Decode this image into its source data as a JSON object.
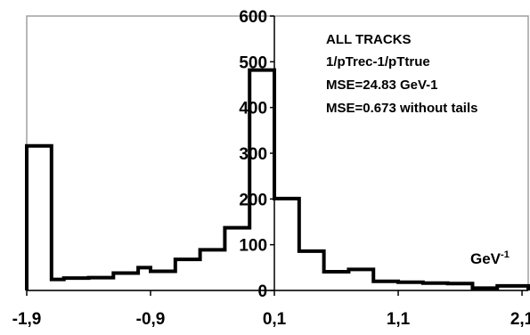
{
  "chart_data": {
    "type": "bar",
    "histogram": true,
    "title": "",
    "xlabel": "",
    "ylabel": "",
    "unit_base": "GeV",
    "unit_exp": "-1",
    "annotations": [
      "ALL TRACKS",
      "1/pTrec-1/pTtrue",
      "MSE=24.83 GeV-1",
      "MSE=0.673 without tails"
    ],
    "xlim": [
      -1.9,
      2.15
    ],
    "ylim": [
      0,
      600
    ],
    "x_ticks": [
      -1.9,
      -0.9,
      0.1,
      1.1,
      2.1
    ],
    "x_tick_labels": [
      "-1,9",
      "-0,9",
      "0,1",
      "1,1",
      "2,1"
    ],
    "y_ticks": [
      0,
      100,
      200,
      300,
      400,
      500,
      600
    ],
    "y_tick_labels": [
      "0",
      "100",
      "200",
      "300",
      "400",
      "500",
      "600"
    ],
    "x_axis_position": 0.1,
    "grid": false,
    "legend": "none",
    "line_color": "#000000",
    "frame_color": "#a0a0a0",
    "bin_edges": [
      -1.9,
      -1.7,
      -1.6,
      -1.4,
      -1.2,
      -1.0,
      -0.9,
      -0.7,
      -0.5,
      -0.3,
      -0.1,
      0.1,
      0.3,
      0.5,
      0.7,
      0.9,
      1.1,
      1.3,
      1.5,
      1.7,
      1.9,
      2.15
    ],
    "values": [
      316,
      24,
      27,
      28,
      38,
      50,
      42,
      68,
      89,
      137,
      482,
      201,
      86,
      41,
      46,
      20,
      18,
      16,
      15,
      5,
      10
    ]
  }
}
